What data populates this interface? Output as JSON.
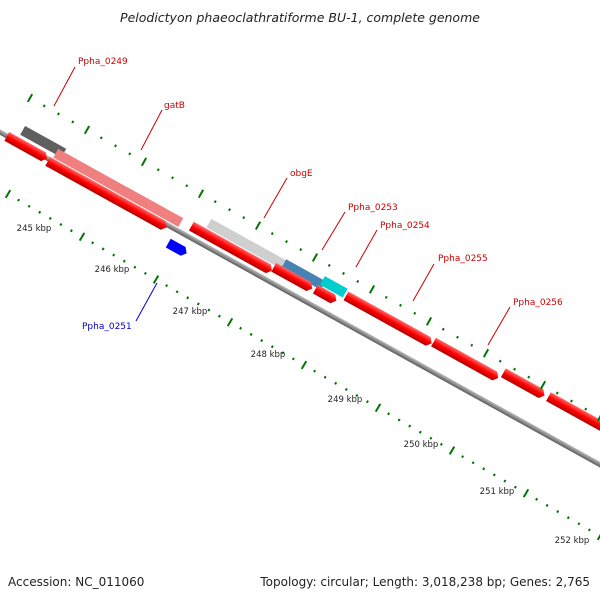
{
  "title": "Pelodictyon phaeoclathratiforme BU-1, complete genome",
  "footer": {
    "accession": "Accession: NC_011060",
    "topology": "Topology: circular; Length: 3,018,238 bp; Genes: 2,765"
  },
  "colors": {
    "forward_gene": "#ff0000",
    "reverse_gene": "#0000ff",
    "tick": "#007700",
    "backbone": "#8a8a8a",
    "label_forward": "#cc0000",
    "label_reverse": "#0000cc"
  },
  "scale_labels": [
    "245 kbp",
    "246 kbp",
    "247 kbp",
    "248 kbp",
    "249 kbp",
    "250 kbp",
    "251 kbp",
    "252 kbp"
  ],
  "gene_labels": [
    "Ppha_0249",
    "gatB",
    "obgE",
    "Ppha_0253",
    "Ppha_0254",
    "Ppha_0255",
    "Ppha_0256",
    "Ppha_0251"
  ],
  "cog_colors": [
    "#d7d7d7",
    "#5f5f5f",
    "#f08080",
    "#cfcfcf",
    "#4682b4",
    "#00cdcd"
  ]
}
